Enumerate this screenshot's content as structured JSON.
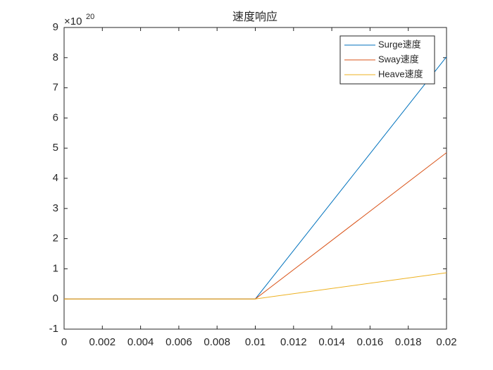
{
  "chart_data": {
    "type": "line",
    "title": "速度响应",
    "y_multiplier": {
      "base": "×10",
      "power": "20"
    },
    "x": [
      0,
      0.01,
      0.02
    ],
    "series": [
      {
        "name": "Surge速度",
        "color": "#0072bd",
        "values": [
          0,
          0,
          8.03
        ]
      },
      {
        "name": "Sway速度",
        "color": "#d95319",
        "values": [
          0,
          0,
          4.85
        ]
      },
      {
        "name": "Heave速度",
        "color": "#edb120",
        "values": [
          0,
          0,
          0.87
        ]
      }
    ],
    "xlim": [
      0,
      0.02
    ],
    "xticks": [
      0,
      0.002,
      0.004,
      0.006,
      0.008,
      0.01,
      0.012,
      0.014,
      0.016,
      0.018,
      0.02
    ],
    "ylim": [
      -1,
      9
    ],
    "yticks": [
      -1,
      0,
      1,
      2,
      3,
      4,
      5,
      6,
      7,
      8,
      9
    ],
    "grid": false,
    "legend": "northeast"
  }
}
